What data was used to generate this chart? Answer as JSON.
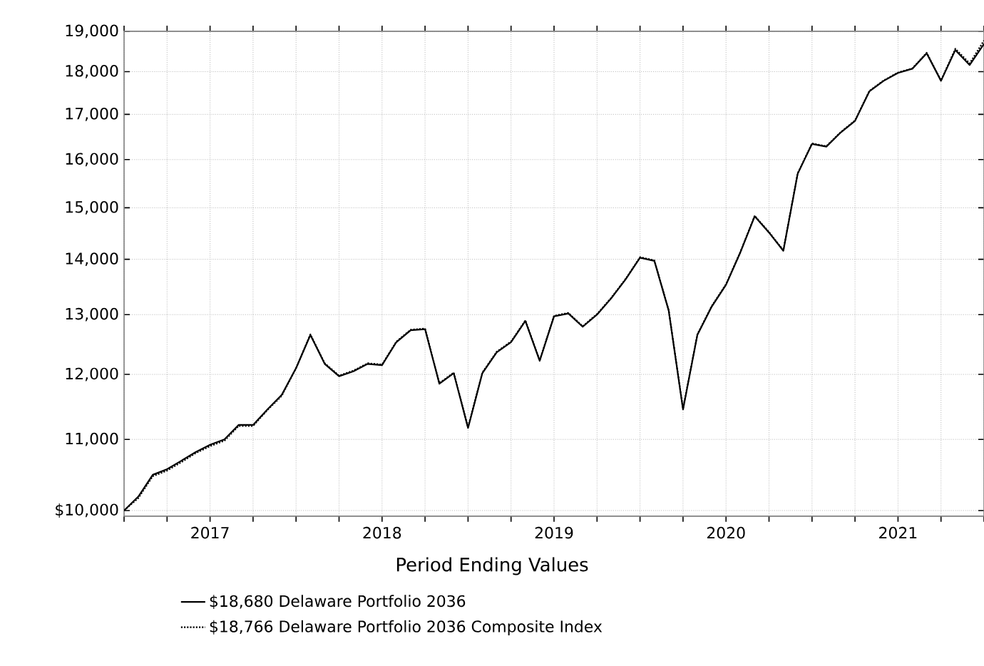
{
  "chart_data": {
    "type": "line",
    "legend_title": "Period Ending Values",
    "x": [
      "2017-01",
      "2017-02",
      "2017-03",
      "2017-04",
      "2017-05",
      "2017-06",
      "2017-07",
      "2017-08",
      "2017-09",
      "2017-10",
      "2017-11",
      "2017-12",
      "2018-01",
      "2018-02",
      "2018-03",
      "2018-04",
      "2018-05",
      "2018-06",
      "2018-07",
      "2018-08",
      "2018-09",
      "2018-10",
      "2018-11",
      "2018-12",
      "2019-01",
      "2019-02",
      "2019-03",
      "2019-04",
      "2019-05",
      "2019-06",
      "2019-07",
      "2019-08",
      "2019-09",
      "2019-10",
      "2019-11",
      "2019-12",
      "2020-01",
      "2020-02",
      "2020-03",
      "2020-04",
      "2020-05",
      "2020-06",
      "2020-07",
      "2020-08",
      "2020-09",
      "2020-10",
      "2020-11",
      "2020-12",
      "2021-01",
      "2021-02",
      "2021-03",
      "2021-04",
      "2021-05",
      "2021-06",
      "2021-07",
      "2021-08",
      "2021-09",
      "2021-10",
      "2021-11",
      "2021-12",
      "2022-01"
    ],
    "series": [
      {
        "name": "$18,680  Delaware Portfolio 2036",
        "color": "#000000",
        "line_style": "solid",
        "values": [
          10000,
          10190,
          10490,
          10570,
          10690,
          10815,
          10920,
          11000,
          11215,
          11215,
          11450,
          11675,
          12100,
          12650,
          12170,
          11970,
          12050,
          12170,
          12150,
          12530,
          12730,
          12750,
          11850,
          12020,
          11170,
          12020,
          12360,
          12530,
          12890,
          12220,
          12970,
          13020,
          12790,
          13000,
          13290,
          13630,
          14030,
          13970,
          13070,
          11450,
          12650,
          13140,
          13530,
          14130,
          14830,
          14510,
          14160,
          15700,
          16340,
          16280,
          16590,
          16850,
          17530,
          17780,
          17970,
          18070,
          18450,
          17780,
          18530,
          18160,
          18680
        ]
      },
      {
        "name": "$18,766  Delaware Portfolio 2036 Composite Index",
        "color": "#000000",
        "line_style": "dotted",
        "values": [
          10000,
          10170,
          10470,
          10550,
          10670,
          10800,
          10900,
          10980,
          11200,
          11200,
          11440,
          11660,
          12100,
          12660,
          12180,
          11980,
          12060,
          12180,
          12160,
          12540,
          12740,
          12760,
          11860,
          12030,
          11180,
          12030,
          12370,
          12540,
          12900,
          12230,
          12980,
          13030,
          12800,
          13010,
          13300,
          13640,
          14040,
          13980,
          13080,
          11460,
          12660,
          13150,
          13540,
          14140,
          14840,
          14520,
          14170,
          15710,
          16350,
          16290,
          16600,
          16860,
          17540,
          17790,
          17980,
          18080,
          18460,
          17790,
          18560,
          18200,
          18766
        ]
      }
    ],
    "log": true,
    "grid": true,
    "legend": "bottom",
    "xlim": [
      "2017-01",
      "2022-01"
    ],
    "xticks": [
      {
        "value": "2017-01",
        "label": null
      },
      {
        "value": "2017-04",
        "label": null
      },
      {
        "value": "2017-07",
        "label": "2017"
      },
      {
        "value": "2017-10",
        "label": null
      },
      {
        "value": "2018-01",
        "label": null
      },
      {
        "value": "2018-04",
        "label": null
      },
      {
        "value": "2018-07",
        "label": "2018"
      },
      {
        "value": "2018-10",
        "label": null
      },
      {
        "value": "2019-01",
        "label": null
      },
      {
        "value": "2019-04",
        "label": null
      },
      {
        "value": "2019-07",
        "label": "2019"
      },
      {
        "value": "2019-10",
        "label": null
      },
      {
        "value": "2020-01",
        "label": null
      },
      {
        "value": "2020-04",
        "label": null
      },
      {
        "value": "2020-07",
        "label": "2020"
      },
      {
        "value": "2020-10",
        "label": null
      },
      {
        "value": "2021-01",
        "label": null
      },
      {
        "value": "2021-04",
        "label": null
      },
      {
        "value": "2021-07",
        "label": "2021"
      },
      {
        "value": "2021-10",
        "label": null
      },
      {
        "value": "2022-01",
        "label": null
      }
    ],
    "ylim": [
      9925,
      19000
    ],
    "yticks": [
      {
        "value": 10000,
        "label": "$10,000"
      },
      {
        "value": 11000,
        "label": "11,000"
      },
      {
        "value": 12000,
        "label": "12,000"
      },
      {
        "value": 13000,
        "label": "13,000"
      },
      {
        "value": 14000,
        "label": "14,000"
      },
      {
        "value": 15000,
        "label": "15,000"
      },
      {
        "value": 16000,
        "label": "16,000"
      },
      {
        "value": 17000,
        "label": "17,000"
      },
      {
        "value": 18000,
        "label": "18,000"
      },
      {
        "value": 19000,
        "label": "19,000"
      }
    ]
  }
}
